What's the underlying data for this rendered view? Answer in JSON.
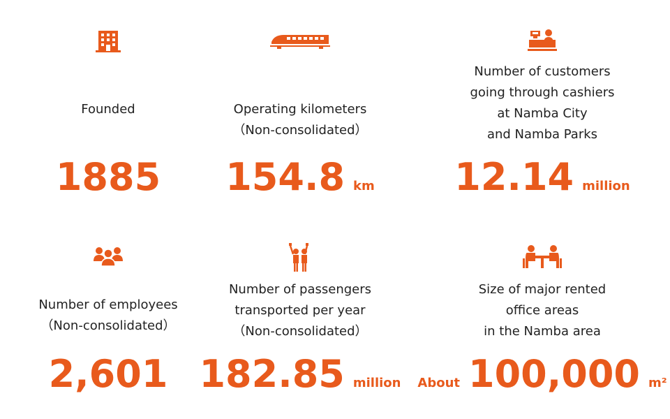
{
  "accent_color": "#e85a1c",
  "stats": [
    {
      "icon": "building-icon",
      "label_lines": [
        "Founded"
      ],
      "value": "1885",
      "prefix": "",
      "unit": ""
    },
    {
      "icon": "train-icon",
      "label_lines": [
        "Operating kilometers",
        "（Non-consolidated）"
      ],
      "value": "154.8",
      "prefix": "",
      "unit": "km"
    },
    {
      "icon": "cashier-icon",
      "label_lines": [
        "Number of customers",
        "going through cashiers",
        "at Namba City",
        "and Namba Parks"
      ],
      "value": "12.14",
      "prefix": "",
      "unit": "million"
    },
    {
      "icon": "employees-group-icon",
      "label_lines": [
        "Number of employees",
        "（Non-consolidated）"
      ],
      "value": "2,601",
      "prefix": "",
      "unit": ""
    },
    {
      "icon": "passengers-waving-icon",
      "label_lines": [
        "Number of passengers",
        "transported per year",
        "（Non-consolidated）"
      ],
      "value": "182.85",
      "prefix": "",
      "unit": "million"
    },
    {
      "icon": "office-meeting-icon",
      "label_lines": [
        "Size of major rented",
        "office areas",
        "in the Namba area"
      ],
      "value": "100,000",
      "prefix": "About",
      "unit": "m²"
    }
  ]
}
